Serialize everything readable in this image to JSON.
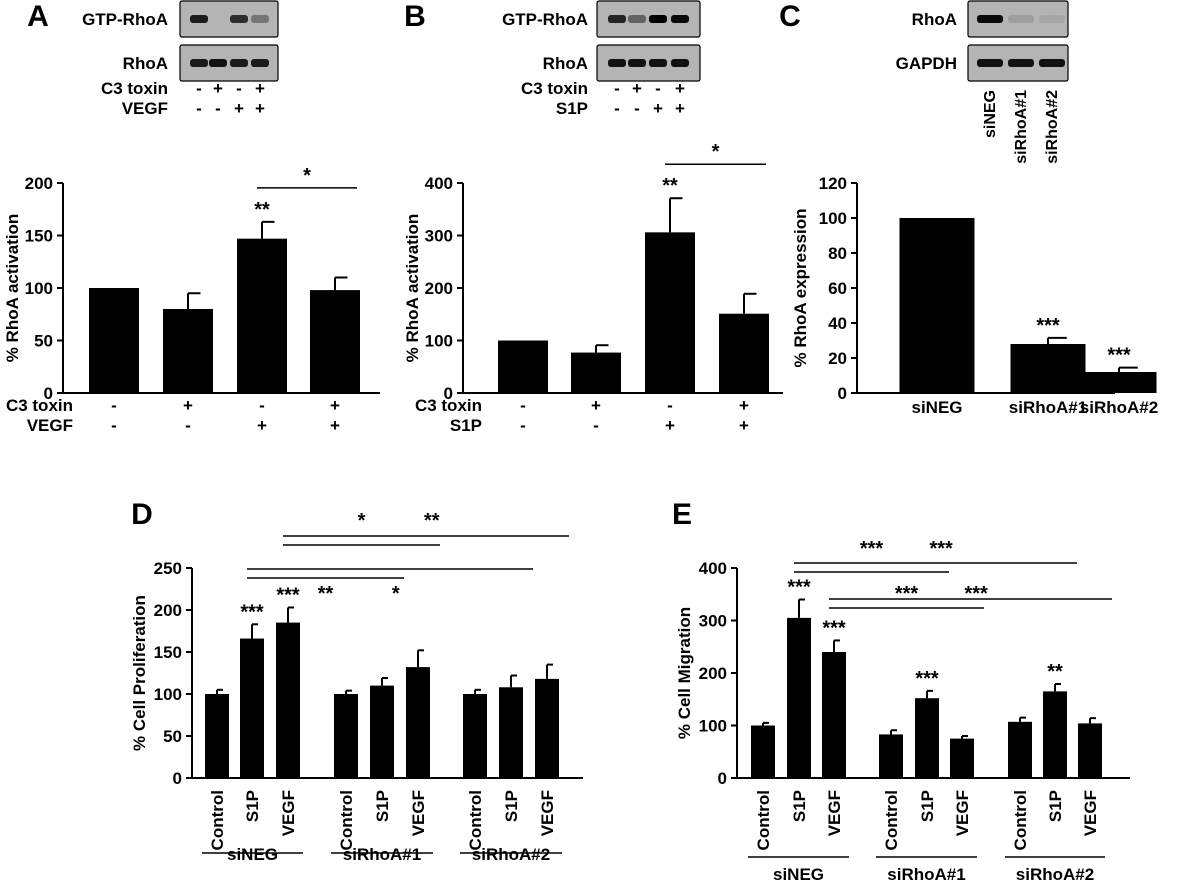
{
  "chart_data": [
    {
      "panel": "A",
      "type": "bar",
      "blot": {
        "rows": [
          "GTP-RhoA",
          "RhoA"
        ],
        "treatments": [
          {
            "label": "C3 toxin",
            "signs": [
              "-",
              "+",
              "-",
              "+"
            ]
          },
          {
            "label": "VEGF",
            "signs": [
              "-",
              "-",
              "+",
              "+"
            ]
          }
        ],
        "bands": [
          [
            0.85,
            0.0,
            0.75,
            0.35
          ],
          [
            0.85,
            0.9,
            0.85,
            0.85
          ]
        ]
      },
      "ylabel": "% RhoA activation",
      "ylim": [
        0,
        200
      ],
      "yticks": [
        0,
        50,
        100,
        150,
        200
      ],
      "values": [
        100,
        80,
        147,
        98
      ],
      "errors": [
        0,
        15,
        16,
        12
      ],
      "rows": [
        {
          "label": "C3 toxin",
          "signs": [
            "-",
            "+",
            "-",
            "+"
          ]
        },
        {
          "label": "VEGF",
          "signs": [
            "-",
            "-",
            "+",
            "+"
          ]
        }
      ],
      "annotations": [
        {
          "text": "**",
          "bar": 2
        },
        {
          "text": "*",
          "from": 2,
          "to": 3
        }
      ]
    },
    {
      "panel": "B",
      "type": "bar",
      "blot": {
        "rows": [
          "GTP-RhoA",
          "RhoA"
        ],
        "treatments": [
          {
            "label": "C3 toxin",
            "signs": [
              "-",
              "+",
              "-",
              "+"
            ]
          },
          {
            "label": "S1P",
            "signs": [
              "-",
              "-",
              "+",
              "+"
            ]
          }
        ],
        "bands": [
          [
            0.8,
            0.45,
            1.0,
            0.95
          ],
          [
            0.9,
            0.9,
            0.9,
            0.9
          ]
        ]
      },
      "ylabel": "% RhoA activation",
      "ylim": [
        0,
        400
      ],
      "yticks": [
        0,
        100,
        200,
        300,
        400
      ],
      "values": [
        100,
        77,
        306,
        151
      ],
      "errors": [
        0,
        14,
        65,
        38
      ],
      "rows": [
        {
          "label": "C3 toxin",
          "signs": [
            "-",
            "+",
            "-",
            "+"
          ]
        },
        {
          "label": "S1P",
          "signs": [
            "-",
            "-",
            "+",
            "+"
          ]
        }
      ],
      "annotations": [
        {
          "text": "**",
          "bar": 2
        },
        {
          "text": "*",
          "from": 2,
          "to": 3
        }
      ]
    },
    {
      "panel": "C",
      "type": "bar",
      "blot": {
        "rows": [
          "RhoA",
          "GAPDH"
        ],
        "lanes": [
          "siNEG",
          "siRhoA#1",
          "siRhoA#2"
        ],
        "bands": [
          [
            0.95,
            0.12,
            0.08
          ],
          [
            0.9,
            0.9,
            0.9
          ]
        ]
      },
      "ylabel": "% RhoA expression",
      "ylim": [
        0,
        120
      ],
      "yticks": [
        0,
        20,
        40,
        60,
        80,
        100,
        120
      ],
      "categories": [
        "siNEG",
        "siRhoA#1",
        "siRhoA#2"
      ],
      "values": [
        100,
        28,
        12
      ],
      "errors": [
        0,
        3.5,
        2.5
      ],
      "annotations": [
        {
          "text": "***",
          "bar": 1
        },
        {
          "text": "***",
          "bar": 2
        }
      ]
    },
    {
      "panel": "D",
      "type": "bar",
      "ylabel": "% Cell Proliferation",
      "ylim": [
        0,
        250
      ],
      "yticks": [
        0,
        50,
        100,
        150,
        200,
        250
      ],
      "categories": [
        "Control",
        "S1P",
        "VEGF",
        "Control",
        "S1P",
        "VEGF",
        "Control",
        "S1P",
        "VEGF"
      ],
      "groups": [
        "siNEG",
        "siRhoA#1",
        "siRhoA#2"
      ],
      "values": [
        100,
        166,
        185,
        100,
        110,
        132,
        100,
        108,
        118
      ],
      "errors": [
        5,
        17,
        18,
        4,
        9,
        20,
        5,
        14,
        17
      ],
      "annotations": [
        {
          "text": "***",
          "bar": 1
        },
        {
          "text": "***",
          "bar": 2
        },
        {
          "text": "*",
          "from": 2,
          "to": 5,
          "level": 3
        },
        {
          "text": "**",
          "from": 2,
          "to": 8,
          "level": 3
        },
        {
          "text": "**",
          "from": 1,
          "to": 4,
          "level": 1
        },
        {
          "text": "*",
          "from": 1,
          "to": 7,
          "level": 1
        }
      ]
    },
    {
      "panel": "E",
      "type": "bar",
      "ylabel": "% Cell Migration",
      "ylim": [
        0,
        400
      ],
      "yticks": [
        0,
        100,
        200,
        300,
        400
      ],
      "categories": [
        "Control",
        "S1P",
        "VEGF",
        "Control",
        "S1P",
        "VEGF",
        "Control",
        "S1P",
        "VEGF"
      ],
      "groups": [
        "siNEG",
        "siRhoA#1",
        "siRhoA#2"
      ],
      "values": [
        100,
        305,
        240,
        83,
        152,
        75,
        107,
        165,
        104
      ],
      "errors": [
        5,
        35,
        22,
        8,
        14,
        5,
        8,
        14,
        10
      ],
      "annotations": [
        {
          "text": "***",
          "bar": 1
        },
        {
          "text": "***",
          "bar": 2
        },
        {
          "text": "***",
          "bar": 4
        },
        {
          "text": "**",
          "bar": 7
        },
        {
          "text": "***",
          "from": 1,
          "to": 4,
          "level": 3
        },
        {
          "text": "***",
          "from": 1,
          "to": 7,
          "level": 3
        },
        {
          "text": "***",
          "from": 2,
          "to": 5,
          "level": 1
        },
        {
          "text": "***",
          "from": 2,
          "to": 8,
          "level": 1
        }
      ]
    }
  ]
}
